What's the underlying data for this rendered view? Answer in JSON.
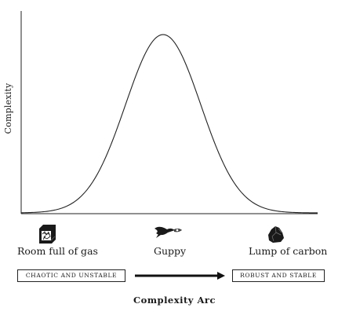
{
  "title": "Complexity Arc",
  "y_axis_label": "Complexity",
  "items": {
    "left": {
      "label": "Room full of gas",
      "icon": "gas-box-icon"
    },
    "middle": {
      "label": "Guppy",
      "icon": "fish-icon"
    },
    "right": {
      "label": "Lump of carbon",
      "icon": "carbon-rock-icon"
    }
  },
  "ends": {
    "left": "CHAOTIC AND UNSTABLE",
    "right": "ROBUST AND STABLE"
  },
  "curve": {
    "shape": "bell",
    "peak_position": "center"
  }
}
